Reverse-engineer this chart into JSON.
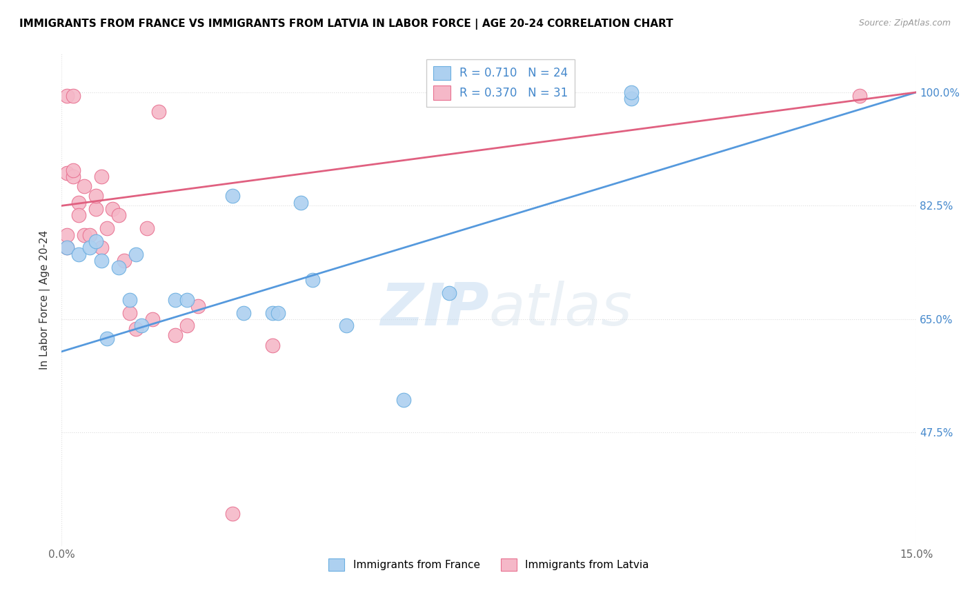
{
  "title": "IMMIGRANTS FROM FRANCE VS IMMIGRANTS FROM LATVIA IN LABOR FORCE | AGE 20-24 CORRELATION CHART",
  "source": "Source: ZipAtlas.com",
  "ylabel": "In Labor Force | Age 20-24",
  "ytick_labels": [
    "100.0%",
    "82.5%",
    "65.0%",
    "47.5%"
  ],
  "ytick_values": [
    1.0,
    0.825,
    0.65,
    0.475
  ],
  "xmin": 0.0,
  "xmax": 0.15,
  "ymin": 0.3,
  "ymax": 1.06,
  "france_color": "#add0f0",
  "latvia_color": "#f5b8c8",
  "france_edge_color": "#6aaee0",
  "latvia_edge_color": "#e87090",
  "france_line_color": "#5599dd",
  "latvia_line_color": "#e06080",
  "legend_text_color": "#4488cc",
  "france_R": 0.71,
  "france_N": 24,
  "latvia_R": 0.37,
  "latvia_N": 31,
  "france_points_x": [
    0.001,
    0.003,
    0.005,
    0.006,
    0.007,
    0.008,
    0.01,
    0.012,
    0.013,
    0.014,
    0.02,
    0.022,
    0.03,
    0.032,
    0.037,
    0.038,
    0.042,
    0.044,
    0.05,
    0.06,
    0.068,
    0.069,
    0.1,
    0.1
  ],
  "france_points_y": [
    0.76,
    0.75,
    0.76,
    0.77,
    0.74,
    0.62,
    0.73,
    0.68,
    0.75,
    0.64,
    0.68,
    0.68,
    0.84,
    0.66,
    0.66,
    0.66,
    0.83,
    0.71,
    0.64,
    0.525,
    0.69,
    1.0,
    0.99,
    1.0
  ],
  "latvia_points_x": [
    0.001,
    0.001,
    0.001,
    0.001,
    0.002,
    0.002,
    0.002,
    0.003,
    0.003,
    0.004,
    0.004,
    0.005,
    0.006,
    0.006,
    0.007,
    0.007,
    0.008,
    0.009,
    0.01,
    0.011,
    0.012,
    0.013,
    0.015,
    0.016,
    0.017,
    0.02,
    0.022,
    0.024,
    0.03,
    0.037,
    0.14
  ],
  "latvia_points_y": [
    0.76,
    0.78,
    0.875,
    0.995,
    0.87,
    0.88,
    0.995,
    0.83,
    0.81,
    0.855,
    0.78,
    0.78,
    0.82,
    0.84,
    0.76,
    0.87,
    0.79,
    0.82,
    0.81,
    0.74,
    0.66,
    0.635,
    0.79,
    0.65,
    0.97,
    0.625,
    0.64,
    0.67,
    0.35,
    0.61,
    0.995
  ],
  "france_line_x0": 0.0,
  "france_line_y0": 0.6,
  "france_line_x1": 0.15,
  "france_line_y1": 1.0,
  "latvia_line_x0": 0.0,
  "latvia_line_y0": 0.825,
  "latvia_line_x1": 0.15,
  "latvia_line_y1": 1.0,
  "watermark_zip": "ZIP",
  "watermark_atlas": "atlas",
  "grid_color": "#dddddd",
  "grid_style": ":"
}
